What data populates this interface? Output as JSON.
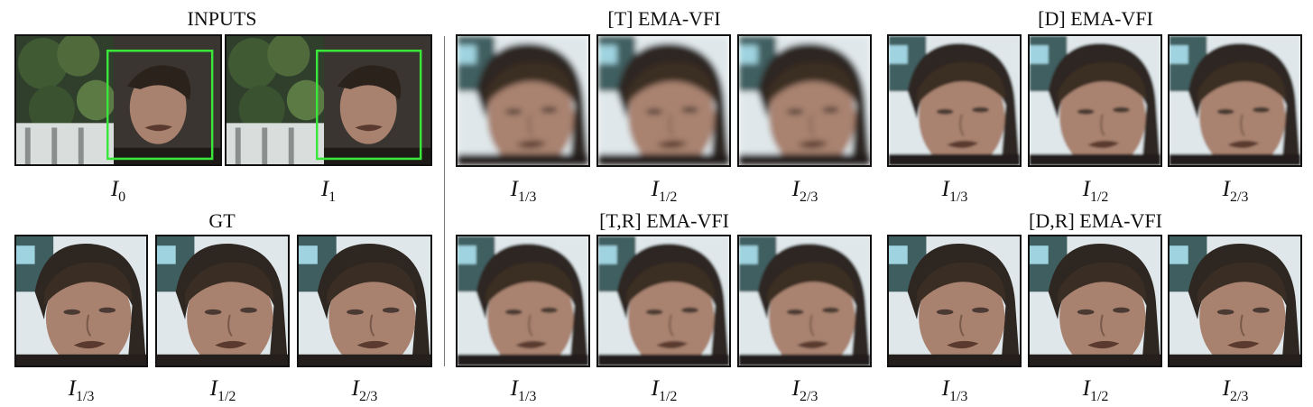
{
  "panels": {
    "inputs": {
      "title": "INPUTS",
      "captions": [
        "I",
        "I"
      ],
      "subs": [
        "0",
        "1"
      ]
    },
    "gt": {
      "title": "GT",
      "subs": [
        "1/3",
        "1/2",
        "2/3"
      ]
    },
    "t": {
      "title": "[T] EMA-VFI",
      "subs": [
        "1/3",
        "1/2",
        "2/3"
      ]
    },
    "d": {
      "title": "[D] EMA-VFI",
      "subs": [
        "1/3",
        "1/2",
        "2/3"
      ]
    },
    "tr": {
      "title": "[T,R] EMA-VFI",
      "subs": [
        "1/3",
        "1/2",
        "2/3"
      ]
    },
    "dr": {
      "title": "[D,R] EMA-VFI",
      "subs": [
        "1/3",
        "1/2",
        "2/3"
      ]
    }
  },
  "caption_symbol": "I",
  "colors": {
    "roi_box": "#39e639",
    "frame_border": "#111111"
  }
}
